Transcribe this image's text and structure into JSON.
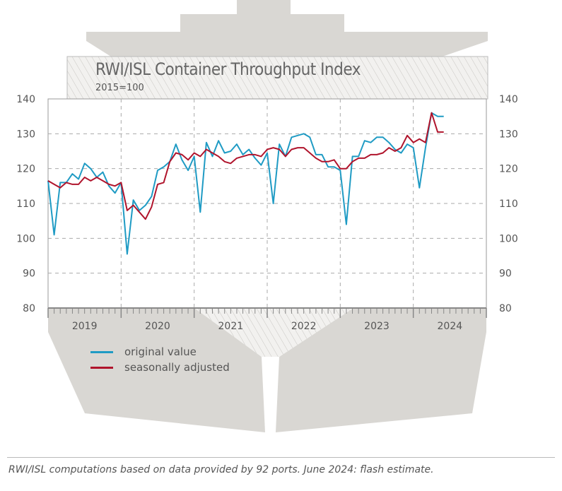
{
  "chart_data": {
    "type": "line",
    "title": "RWI/ISL Container Throughput Index",
    "subtitle": "2015=100",
    "ylim": [
      80,
      140
    ],
    "yticks": [
      80,
      90,
      100,
      110,
      120,
      130,
      140
    ],
    "xticks": [
      "2019",
      "2020",
      "2021",
      "2022",
      "2023",
      "2024"
    ],
    "x_start": "2019-01",
    "x_end": "2024-12",
    "grid": true,
    "legend_position": "bottom-left",
    "series": [
      {
        "name": "original value",
        "color": "#1f9bc4",
        "values": [
          116.5,
          101,
          116,
          116,
          118.5,
          117,
          121.5,
          120,
          117.5,
          119,
          115,
          113,
          116,
          95.5,
          111,
          108,
          109.5,
          112,
          119.5,
          120.5,
          122,
          127,
          122.5,
          119.5,
          123.5,
          107.5,
          127.5,
          123.5,
          128,
          124.5,
          125,
          127,
          124,
          125.5,
          123,
          121,
          124.5,
          110,
          127,
          123.5,
          129,
          129.5,
          130,
          129,
          124,
          124,
          120.5,
          120.5,
          119.5,
          104,
          123.5,
          123.5,
          128,
          127.5,
          129,
          129,
          127.5,
          125.5,
          124.5,
          127,
          126,
          114.5,
          126,
          136,
          135,
          135
        ]
      },
      {
        "name": "seasonally adjusted",
        "color": "#b0142c",
        "values": [
          116.5,
          115.5,
          114.5,
          116,
          115.5,
          115.5,
          117.5,
          116.5,
          117.5,
          116.5,
          115.5,
          115,
          116,
          108,
          109.5,
          107.5,
          105.5,
          109,
          115.5,
          116,
          122,
          124.5,
          124,
          122.5,
          124.5,
          123.5,
          125.5,
          124.5,
          123.5,
          122,
          121.5,
          123,
          123.5,
          124,
          124,
          123.5,
          125.5,
          126,
          125.5,
          123.5,
          125.5,
          126,
          126,
          124.5,
          123,
          122,
          122,
          122.5,
          120,
          120,
          122,
          123,
          123,
          124,
          124,
          124.5,
          126,
          125,
          126,
          129.5,
          127.5,
          128.5,
          127.5,
          136,
          130.5,
          130.5
        ]
      }
    ]
  },
  "footer": "RWI/ISL computations based on data provided by 92 ports. June 2024: flash estimate."
}
